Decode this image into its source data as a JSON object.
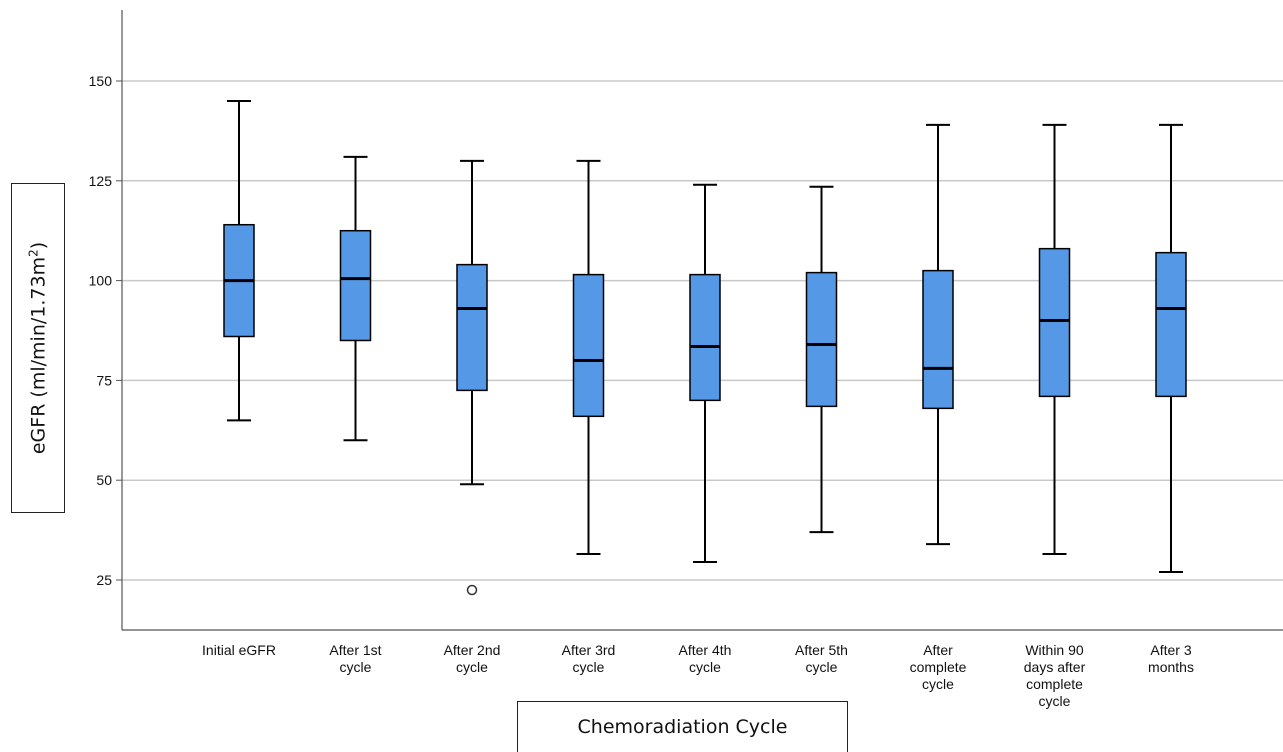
{
  "chart_data": {
    "type": "box",
    "title": "",
    "xlabel": "Chemoradiation Cycle",
    "ylabel_main": "eGFR (ml/min/1.73m",
    "ylabel_sup": "2",
    "ylabel_close": ")",
    "ylim": [
      12.5,
      175
    ],
    "yticks": [
      25,
      50,
      75,
      100,
      125,
      150
    ],
    "grid": true,
    "box_color": "#5599e6",
    "categories": [
      [
        "Initial eGFR"
      ],
      [
        "After 1st",
        "cycle"
      ],
      [
        "After 2nd",
        "cycle"
      ],
      [
        "After 3rd",
        "cycle"
      ],
      [
        "After 4th",
        "cycle"
      ],
      [
        "After 5th",
        "cycle"
      ],
      [
        "After",
        "complete",
        "cycle"
      ],
      [
        "Within 90",
        "days after",
        "complete",
        "cycle"
      ],
      [
        "After 3",
        "months"
      ]
    ],
    "boxes": [
      {
        "min": 65,
        "q1": 86,
        "median": 100,
        "q3": 114,
        "max": 145,
        "outliers": []
      },
      {
        "min": 60,
        "q1": 85,
        "median": 100.5,
        "q3": 112.5,
        "max": 131,
        "outliers": []
      },
      {
        "min": 49,
        "q1": 72.5,
        "median": 93,
        "q3": 104,
        "max": 130,
        "outliers": [
          22.5
        ]
      },
      {
        "min": 31.5,
        "q1": 66,
        "median": 80,
        "q3": 101.5,
        "max": 130,
        "outliers": []
      },
      {
        "min": 29.5,
        "q1": 70,
        "median": 83.5,
        "q3": 101.5,
        "max": 124,
        "outliers": []
      },
      {
        "min": 37,
        "q1": 68.5,
        "median": 84,
        "q3": 102,
        "max": 123.5,
        "outliers": []
      },
      {
        "min": 34,
        "q1": 68,
        "median": 78,
        "q3": 102.5,
        "max": 139,
        "outliers": []
      },
      {
        "min": 31.5,
        "q1": 71,
        "median": 90,
        "q3": 108,
        "max": 139,
        "outliers": []
      },
      {
        "min": 27,
        "q1": 71,
        "median": 93,
        "q3": 107,
        "max": 139,
        "outliers": []
      }
    ]
  }
}
